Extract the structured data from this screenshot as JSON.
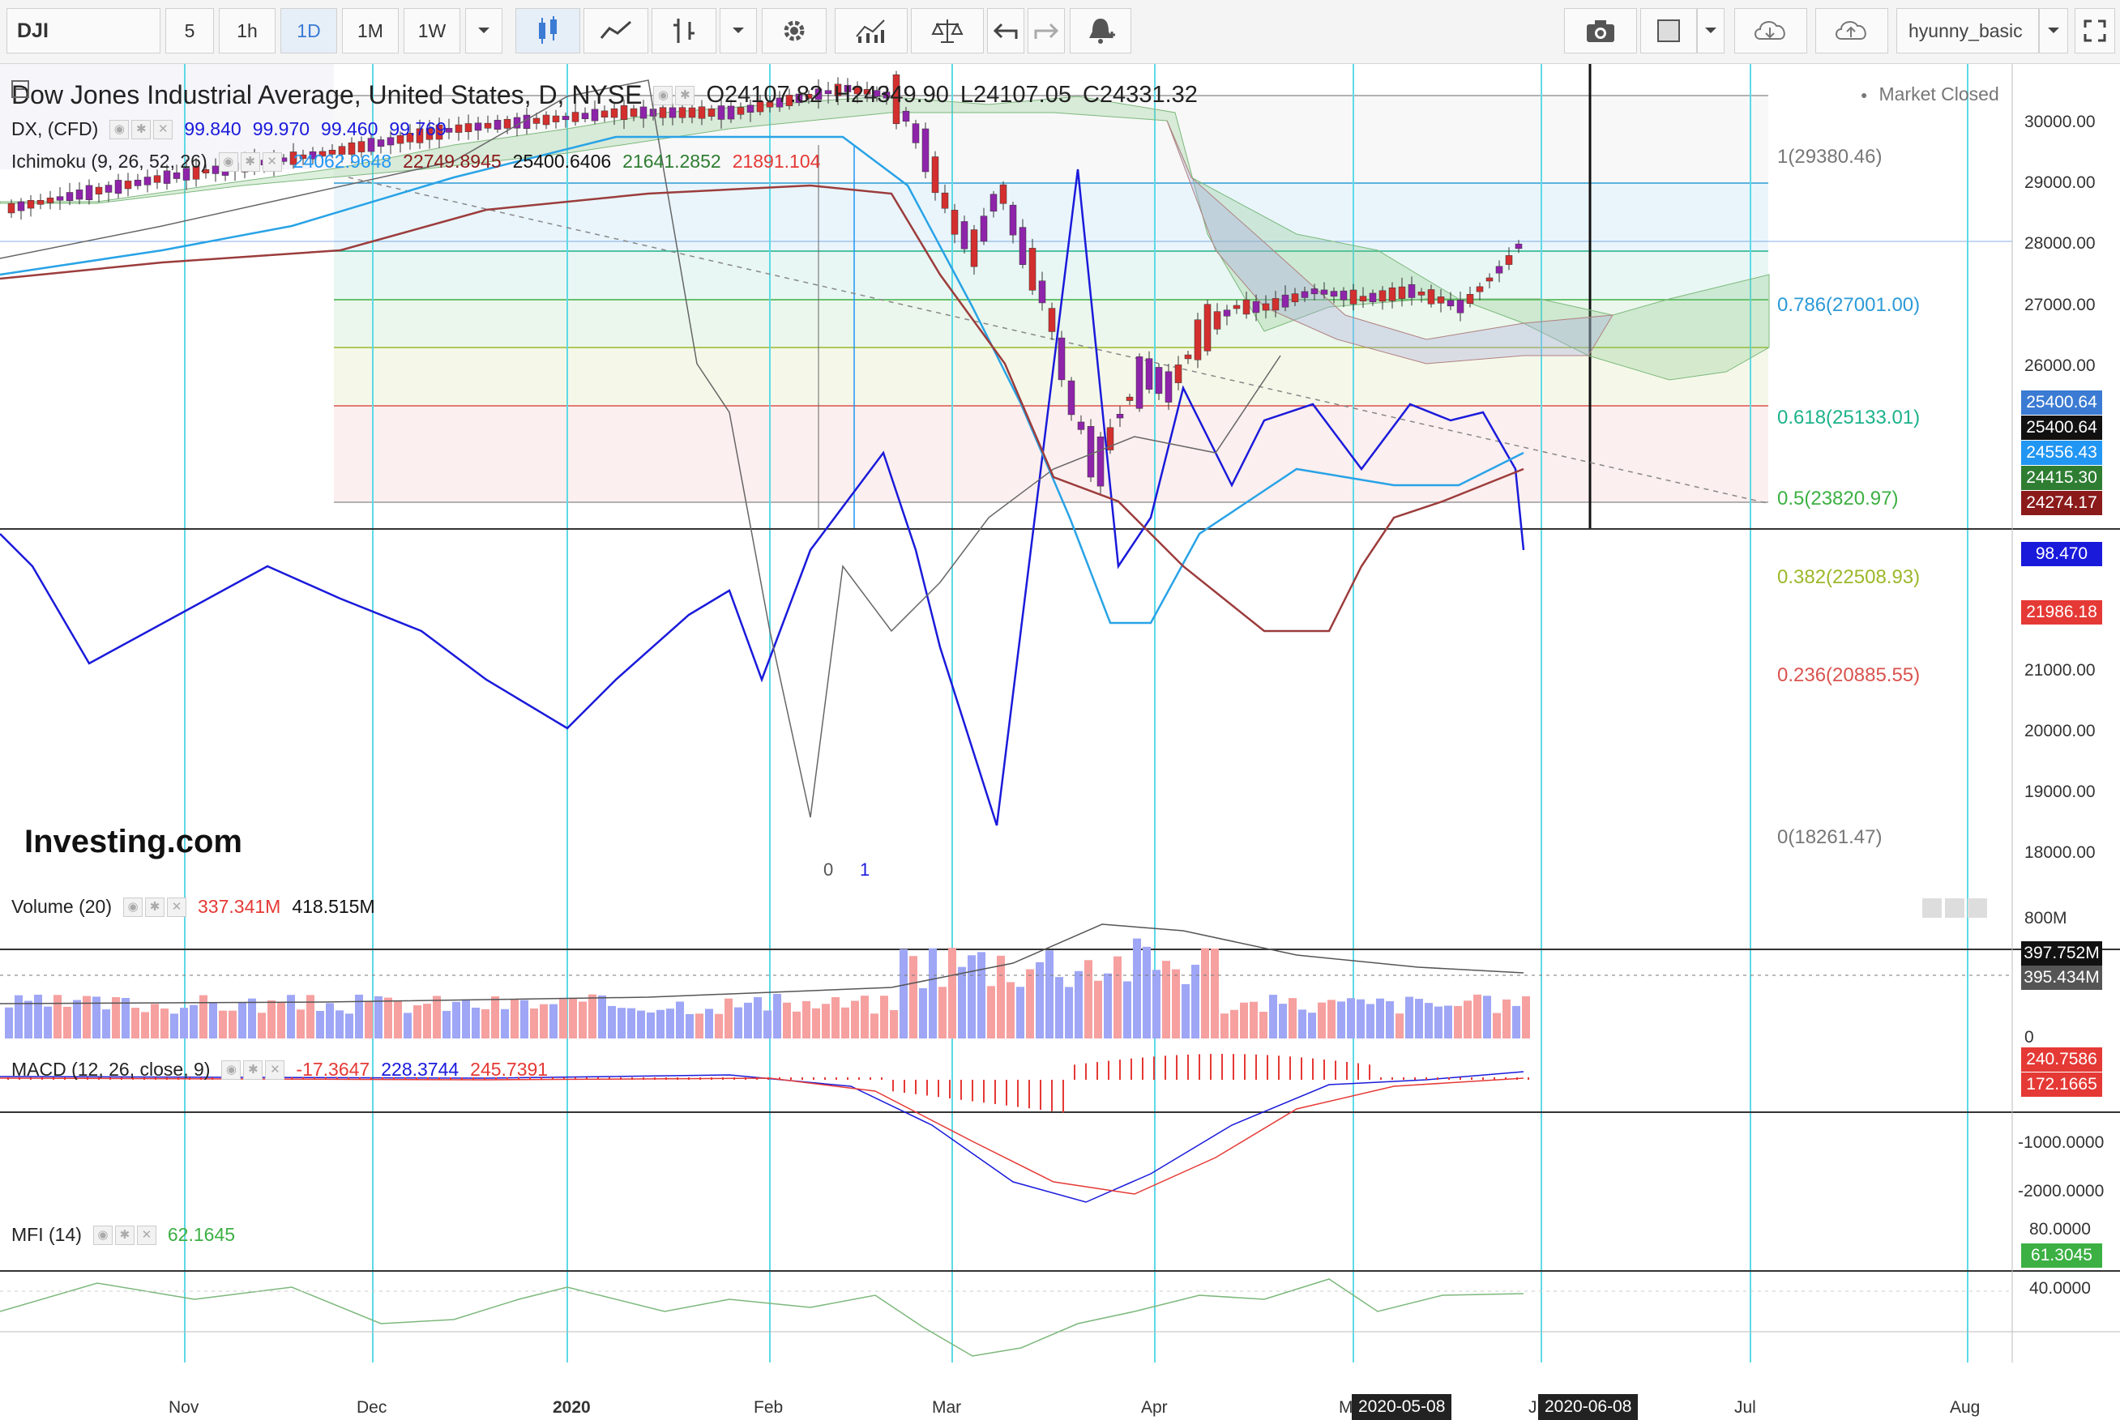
{
  "toolbar": {
    "symbol": "DJI",
    "intervals": [
      "5",
      "1h",
      "1D",
      "1M",
      "1W"
    ],
    "active_interval": "1D",
    "user": "hyunny_basic"
  },
  "main": {
    "title": "Dow Jones Industrial Average, United States, D, NYSE",
    "ohlc": {
      "o": "O24107.82",
      "h": "H24349.90",
      "l": "L24107.05",
      "c": "C24331.32"
    },
    "market_status": "Market Closed",
    "logo": "Investing.com"
  },
  "indicators": {
    "dx": {
      "name": "DX, (CFD)",
      "v1": "99.840",
      "v2": "99.970",
      "v3": "99.460",
      "v4": "99.769"
    },
    "ichimoku": {
      "name": "Ichimoku (9, 26, 52, 26)",
      "v1": "24062.9648",
      "v2": "22749.8945",
      "v3": "25400.6406",
      "v4": "21641.2852",
      "v5": "21891.104"
    },
    "volume": {
      "name": "Volume (20)",
      "v1": "337.341M",
      "v2": "418.515M"
    },
    "macd": {
      "name": "MACD (12, 26, close, 9)",
      "v1": "-17.3647",
      "v2": "228.3744",
      "v3": "245.7391"
    },
    "mfi": {
      "name": "MFI (14)",
      "v1": "62.1645"
    }
  },
  "price_axis": [
    "30000.00",
    "29000.00",
    "28000.00",
    "27000.00",
    "26000.00",
    "21000.00",
    "20000.00",
    "19000.00",
    "18000.00"
  ],
  "price_labels": [
    {
      "text": "25400.64",
      "color": "#3b7bd3"
    },
    {
      "text": "25400.64",
      "color": "#111111"
    },
    {
      "text": "24556.43",
      "color": "#2196f3"
    },
    {
      "text": "24415.30",
      "color": "#2e7d32"
    },
    {
      "text": "24274.17",
      "color": "#8b1a1a"
    },
    {
      "text": "98.470",
      "color": "#1a1adb"
    },
    {
      "text": "21986.18",
      "color": "#e53935"
    }
  ],
  "fib": [
    {
      "text": "1(29380.46)",
      "color": "#777777"
    },
    {
      "text": "0.786(27001.00)",
      "color": "#2c9ad7"
    },
    {
      "text": "0.618(25133.01)",
      "color": "#1cb28a"
    },
    {
      "text": "0.5(23820.97)",
      "color": "#3cb043"
    },
    {
      "text": "0.382(22508.93)",
      "color": "#9bb82a"
    },
    {
      "text": "0.236(20885.55)",
      "color": "#d9534f"
    },
    {
      "text": "0(18261.47)",
      "color": "#777777"
    }
  ],
  "fib_markers": [
    "0",
    "1"
  ],
  "volume_axis": [
    "800M",
    "0"
  ],
  "volume_labels": [
    "397.752M",
    "395.434M"
  ],
  "macd_axis": [
    "-1000.0000",
    "-2000.0000"
  ],
  "macd_labels": [
    "240.7586",
    "172.1665"
  ],
  "mfi_axis": [
    "80.0000",
    "40.0000"
  ],
  "mfi_label": "61.3045",
  "x_axis": [
    "Nov",
    "Dec",
    "2020",
    "Feb",
    "Mar",
    "Apr",
    "M",
    "J",
    "Jul",
    "Aug"
  ],
  "x_highlights": [
    "2020-05-08",
    "2020-06-08"
  ],
  "colors": {
    "up": "#d32f2f",
    "down": "#8e24aa",
    "vol_up": "#f6a0a0",
    "vol_down": "#9ea6f5",
    "accent": "#3b7bd3"
  }
}
